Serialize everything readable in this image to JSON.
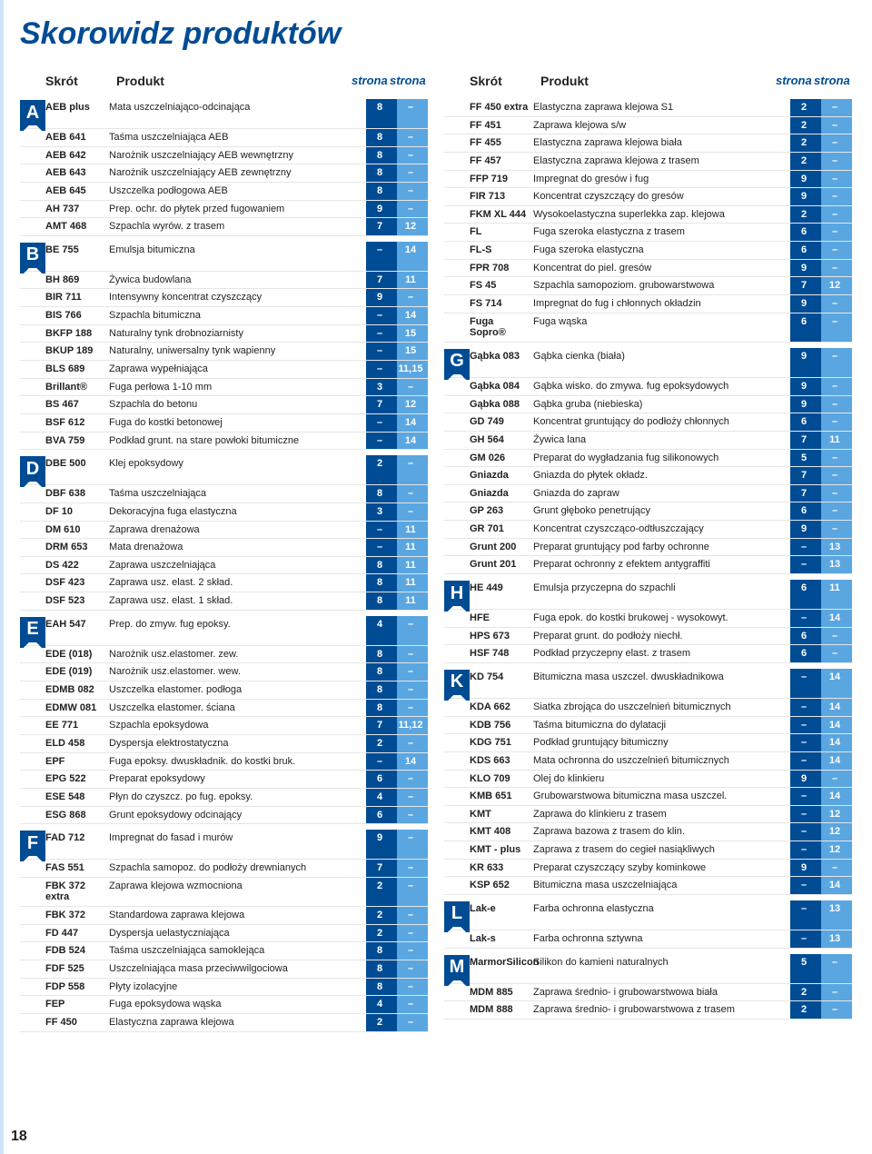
{
  "title": "Skorowidz produktów",
  "page_number": "18",
  "headers": {
    "skrot": "Skrót",
    "produkt": "Produkt",
    "strona": "strona"
  },
  "colors": {
    "brand": "#004c94",
    "accent": "#5aa6e0",
    "rule": "#e6e6e6"
  },
  "left": [
    {
      "letter": "A",
      "rows": [
        {
          "s": "AEB plus",
          "p": "Mata uszczelniająco-odcinająca",
          "a": "8",
          "b": "–"
        },
        {
          "s": "AEB 641",
          "p": "Taśma uszczelniająca AEB",
          "a": "8",
          "b": "–"
        },
        {
          "s": "AEB 642",
          "p": "Narożnik uszczelniający AEB wewnętrzny",
          "a": "8",
          "b": "–"
        },
        {
          "s": "AEB 643",
          "p": "Narożnik uszczelniający AEB zewnętrzny",
          "a": "8",
          "b": "–"
        },
        {
          "s": "AEB 645",
          "p": "Uszczelka podłogowa AEB",
          "a": "8",
          "b": "–"
        },
        {
          "s": "AH 737",
          "p": "Prep. ochr. do płytek przed fugowaniem",
          "a": "9",
          "b": "–"
        },
        {
          "s": "AMT 468",
          "p": "Szpachla wyrów. z trasem",
          "a": "7",
          "b": "12"
        }
      ]
    },
    {
      "letter": "B",
      "rows": [
        {
          "s": "BE 755",
          "p": "Emulsja bitumiczna",
          "a": "–",
          "b": "14"
        },
        {
          "s": "BH 869",
          "p": "Żywica budowlana",
          "a": "7",
          "b": "11"
        },
        {
          "s": "BIR 711",
          "p": "Intensywny koncentrat czyszczący",
          "a": "9",
          "b": "–"
        },
        {
          "s": "BIS 766",
          "p": "Szpachla bitumiczna",
          "a": "–",
          "b": "14"
        },
        {
          "s": "BKFP 188",
          "p": "Naturalny tynk drobnoziarnisty",
          "a": "–",
          "b": "15"
        },
        {
          "s": "BKUP 189",
          "p": "Naturalny, uniwersalny tynk wapienny",
          "a": "–",
          "b": "15"
        },
        {
          "s": "BLS 689",
          "p": "Zaprawa wypełniająca",
          "a": "–",
          "b": "11,15"
        },
        {
          "s": "Brillant®",
          "p": "Fuga perłowa 1-10 mm",
          "a": "3",
          "b": "–"
        },
        {
          "s": "BS 467",
          "p": "Szpachla do betonu",
          "a": "7",
          "b": "12"
        },
        {
          "s": "BSF 612",
          "p": "Fuga do kostki betonowej",
          "a": "–",
          "b": "14"
        },
        {
          "s": "BVA 759",
          "p": "Podkład grunt. na stare powłoki bitumiczne",
          "a": "–",
          "b": "14"
        }
      ]
    },
    {
      "letter": "D",
      "rows": [
        {
          "s": "DBE 500",
          "p": "Klej epoksydowy",
          "a": "2",
          "b": "–"
        },
        {
          "s": "DBF 638",
          "p": "Taśma uszczelniająca",
          "a": "8",
          "b": "–"
        },
        {
          "s": "DF 10",
          "p": "Dekoracyjna fuga elastyczna",
          "a": "3",
          "b": "–"
        },
        {
          "s": "DM 610",
          "p": "Zaprawa drenażowa",
          "a": "–",
          "b": "11"
        },
        {
          "s": "DRM 653",
          "p": "Mata drenażowa",
          "a": "–",
          "b": "11"
        },
        {
          "s": "DS 422",
          "p": "Zaprawa uszczelniająca",
          "a": "8",
          "b": "11"
        },
        {
          "s": "DSF 423",
          "p": "Zaprawa usz. elast. 2 skład.",
          "a": "8",
          "b": "11"
        },
        {
          "s": "DSF 523",
          "p": "Zaprawa usz. elast. 1 skład.",
          "a": "8",
          "b": "11"
        }
      ]
    },
    {
      "letter": "E",
      "rows": [
        {
          "s": "EAH 547",
          "p": "Prep. do zmyw. fug epoksy.",
          "a": "4",
          "b": "–"
        },
        {
          "s": "EDE (018)",
          "p": "Narożnik usz.elastomer. zew.",
          "a": "8",
          "b": "–"
        },
        {
          "s": "EDE (019)",
          "p": "Narożnik usz.elastomer. wew.",
          "a": "8",
          "b": "–"
        },
        {
          "s": "EDMB 082",
          "p": "Uszczelka elastomer. podłoga",
          "a": "8",
          "b": "–"
        },
        {
          "s": "EDMW 081",
          "p": "Uszczelka elastomer. ściana",
          "a": "8",
          "b": "–"
        },
        {
          "s": "EE 771",
          "p": "Szpachla epoksydowa",
          "a": "7",
          "b": "11,12"
        },
        {
          "s": "ELD 458",
          "p": "Dyspersja elektrostatyczna",
          "a": "2",
          "b": "–"
        },
        {
          "s": "EPF",
          "p": "Fuga epoksy. dwuskładnik. do kostki bruk.",
          "a": "–",
          "b": "14"
        },
        {
          "s": "EPG 522",
          "p": "Preparat epoksydowy",
          "a": "6",
          "b": "–"
        },
        {
          "s": "ESE 548",
          "p": "Płyn do czyszcz. po fug. epoksy.",
          "a": "4",
          "b": "–"
        },
        {
          "s": "ESG 868",
          "p": "Grunt epoksydowy odcinający",
          "a": "6",
          "b": "–"
        }
      ]
    },
    {
      "letter": "F",
      "rows": [
        {
          "s": "FAD 712",
          "p": "Impregnat do fasad i murów",
          "a": "9",
          "b": "–"
        },
        {
          "s": "FAS 551",
          "p": "Szpachla samopoz. do podłoży drewnianych",
          "a": "7",
          "b": "–"
        },
        {
          "s": "FBK 372 extra",
          "p": "Zaprawa klejowa wzmocniona",
          "a": "2",
          "b": "–"
        },
        {
          "s": "FBK 372",
          "p": "Standardowa zaprawa klejowa",
          "a": "2",
          "b": "–"
        },
        {
          "s": "FD 447",
          "p": "Dyspersja uelastyczniająca",
          "a": "2",
          "b": "–"
        },
        {
          "s": "FDB 524",
          "p": "Taśma uszczelniająca samoklejąca",
          "a": "8",
          "b": "–"
        },
        {
          "s": "FDF 525",
          "p": "Uszczelniająca masa przeciwwilgociowa",
          "a": "8",
          "b": "–"
        },
        {
          "s": "FDP 558",
          "p": "Płyty izolacyjne",
          "a": "8",
          "b": "–"
        },
        {
          "s": "FEP",
          "p": "Fuga epoksydowa wąska",
          "a": "4",
          "b": "–"
        },
        {
          "s": "FF 450",
          "p": "Elastyczna zaprawa klejowa",
          "a": "2",
          "b": "–"
        }
      ]
    }
  ],
  "right": [
    {
      "letter": "",
      "rows": [
        {
          "s": "FF 450 extra",
          "p": "Elastyczna zaprawa klejowa S1",
          "a": "2",
          "b": "–"
        },
        {
          "s": "FF 451",
          "p": "Zaprawa klejowa s/w",
          "a": "2",
          "b": "–"
        },
        {
          "s": "FF 455",
          "p": "Elastyczna zaprawa klejowa biała",
          "a": "2",
          "b": "–"
        },
        {
          "s": "FF 457",
          "p": "Elastyczna zaprawa klejowa z trasem",
          "a": "2",
          "b": "–"
        },
        {
          "s": "FFP 719",
          "p": "Impregnat do gresów i fug",
          "a": "9",
          "b": "–"
        },
        {
          "s": "FIR 713",
          "p": "Koncentrat czyszczący do gresów",
          "a": "9",
          "b": "–"
        },
        {
          "s": "FKM XL 444",
          "p": "Wysokoelastyczna superlekka zap. klejowa",
          "a": "2",
          "b": "–"
        },
        {
          "s": "FL",
          "p": "Fuga szeroka elastyczna z trasem",
          "a": "6",
          "b": "–"
        },
        {
          "s": "FL-S",
          "p": "Fuga szeroka elastyczna",
          "a": "6",
          "b": "–"
        },
        {
          "s": "FPR 708",
          "p": "Koncentrat do piel. gresów",
          "a": "9",
          "b": "–"
        },
        {
          "s": "FS 45",
          "p": "Szpachla samopoziom. grubowarstwowa",
          "a": "7",
          "b": "12"
        },
        {
          "s": "FS 714",
          "p": "Impregnat do fug i chłonnych okładzin",
          "a": "9",
          "b": "–"
        },
        {
          "s": "Fuga Sopro®",
          "p": "Fuga wąska",
          "a": "6",
          "b": "–"
        }
      ]
    },
    {
      "letter": "G",
      "rows": [
        {
          "s": "Gąbka 083",
          "p": "Gąbka cienka (biała)",
          "a": "9",
          "b": "–"
        },
        {
          "s": "Gąbka 084",
          "p": "Gąbka wisko. do zmywa. fug epoksydowych",
          "a": "9",
          "b": "–"
        },
        {
          "s": "Gąbka 088",
          "p": "Gąbka gruba (niebieska)",
          "a": "9",
          "b": "–"
        },
        {
          "s": "GD 749",
          "p": "Koncentrat gruntujący do podłoży chłonnych",
          "a": "6",
          "b": "–"
        },
        {
          "s": "GH 564",
          "p": "Żywica lana",
          "a": "7",
          "b": "11"
        },
        {
          "s": "GM 026",
          "p": "Preparat do wygładzania fug silikonowych",
          "a": "5",
          "b": "–"
        },
        {
          "s": "Gniazda",
          "p": "Gniazda do płytek okładz.",
          "a": "7",
          "b": "–"
        },
        {
          "s": "Gniazda",
          "p": "Gniazda do zapraw",
          "a": "7",
          "b": "–"
        },
        {
          "s": "GP 263",
          "p": "Grunt głęboko penetrujący",
          "a": "6",
          "b": "–"
        },
        {
          "s": "GR 701",
          "p": "Koncentrat czyszcząco-odtłuszczający",
          "a": "9",
          "b": "–"
        },
        {
          "s": "Grunt 200",
          "p": "Preparat gruntujący pod farby ochronne",
          "a": "–",
          "b": "13"
        },
        {
          "s": "Grunt 201",
          "p": "Preparat ochronny z efektem antygraffiti",
          "a": "–",
          "b": "13"
        }
      ]
    },
    {
      "letter": "H",
      "rows": [
        {
          "s": "HE 449",
          "p": "Emulsja przyczepna do szpachli",
          "a": "6",
          "b": "11"
        },
        {
          "s": "HFE",
          "p": "Fuga epok. do kostki brukowej - wysokowyt.",
          "a": "–",
          "b": "14"
        },
        {
          "s": "HPS 673",
          "p": "Preparat grunt. do podłoży niechł.",
          "a": "6",
          "b": "–"
        },
        {
          "s": "HSF 748",
          "p": "Podkład przyczepny elast. z trasem",
          "a": "6",
          "b": "–"
        }
      ]
    },
    {
      "letter": "K",
      "rows": [
        {
          "s": "KD 754",
          "p": "Bitumiczna masa uszczel. dwuskładnikowa",
          "a": "–",
          "b": "14"
        },
        {
          "s": "KDA 662",
          "p": "Siatka zbrojąca do uszczelnień bitumicznych",
          "a": "–",
          "b": "14"
        },
        {
          "s": "KDB 756",
          "p": "Taśma bitumiczna do dylatacji",
          "a": "–",
          "b": "14"
        },
        {
          "s": "KDG 751",
          "p": "Podkład gruntujący bitumiczny",
          "a": "–",
          "b": "14"
        },
        {
          "s": "KDS 663",
          "p": "Mata ochronna do uszczelnień bitumicznych",
          "a": "–",
          "b": "14"
        },
        {
          "s": "KLO 709",
          "p": "Olej do klinkieru",
          "a": "9",
          "b": "–"
        },
        {
          "s": "KMB 651",
          "p": "Grubowarstwowa bitumiczna masa uszczel.",
          "a": "–",
          "b": "14"
        },
        {
          "s": "KMT",
          "p": "Zaprawa do klinkieru z trasem",
          "a": "–",
          "b": "12"
        },
        {
          "s": "KMT 408",
          "p": "Zaprawa bazowa z trasem do klin.",
          "a": "–",
          "b": "12"
        },
        {
          "s": "KMT - plus",
          "p": "Zaprawa z trasem do cegieł nasiąkliwych",
          "a": "–",
          "b": "12"
        },
        {
          "s": "KR 633",
          "p": "Preparat czyszczący szyby kominkowe",
          "a": "9",
          "b": "–"
        },
        {
          "s": "KSP 652",
          "p": "Bitumiczna masa uszczelniająca",
          "a": "–",
          "b": "14"
        }
      ]
    },
    {
      "letter": "L",
      "rows": [
        {
          "s": "Lak-e",
          "p": "Farba ochronna elastyczna",
          "a": "–",
          "b": "13"
        },
        {
          "s": "Lak-s",
          "p": "Farba ochronna sztywna",
          "a": "–",
          "b": "13"
        }
      ]
    },
    {
      "letter": "M",
      "rows": [
        {
          "s": "MarmorSilicon",
          "p": "Silikon do kamieni naturalnych",
          "a": "5",
          "b": "–"
        },
        {
          "s": "MDM 885",
          "p": "Zaprawa średnio- i grubowarstwowa biała",
          "a": "2",
          "b": "–"
        },
        {
          "s": "MDM 888",
          "p": "Zaprawa średnio- i grubowarstwowa z trasem",
          "a": "2",
          "b": "–"
        }
      ]
    }
  ]
}
